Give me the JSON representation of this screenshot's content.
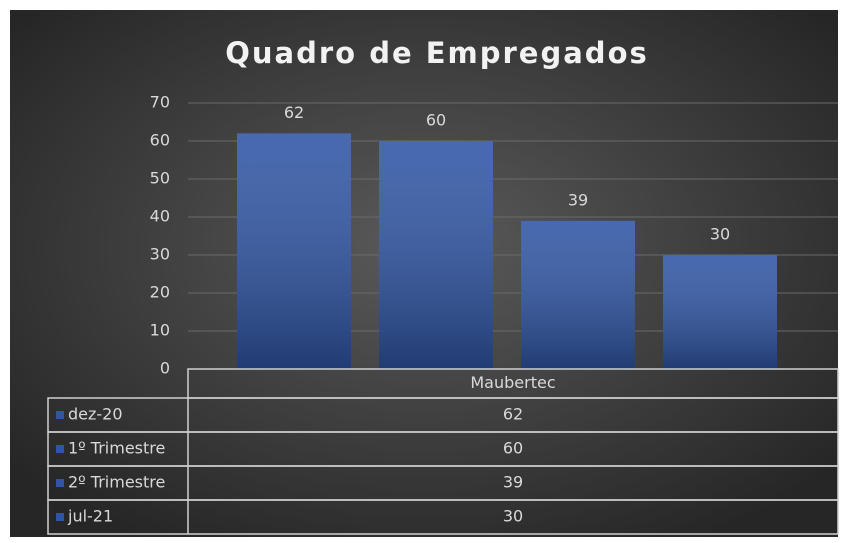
{
  "chart_data": {
    "type": "bar",
    "title": "Quadro de Empregados",
    "categories": [
      "Maubertec"
    ],
    "series": [
      {
        "name": "dez-20",
        "color": "#2f55a4",
        "values": [
          62
        ]
      },
      {
        "name": "1º Trimestre",
        "color": "#2f55a4",
        "values": [
          60
        ]
      },
      {
        "name": "2º Trimestre",
        "color": "#2f55a4",
        "values": [
          39
        ]
      },
      {
        "name": "jul-21",
        "color": "#2f55a4",
        "values": [
          30
        ]
      }
    ],
    "ylim": [
      0,
      70
    ],
    "yticks": [
      0,
      10,
      20,
      30,
      40,
      50,
      60,
      70
    ],
    "grid": true,
    "data_table": true
  }
}
